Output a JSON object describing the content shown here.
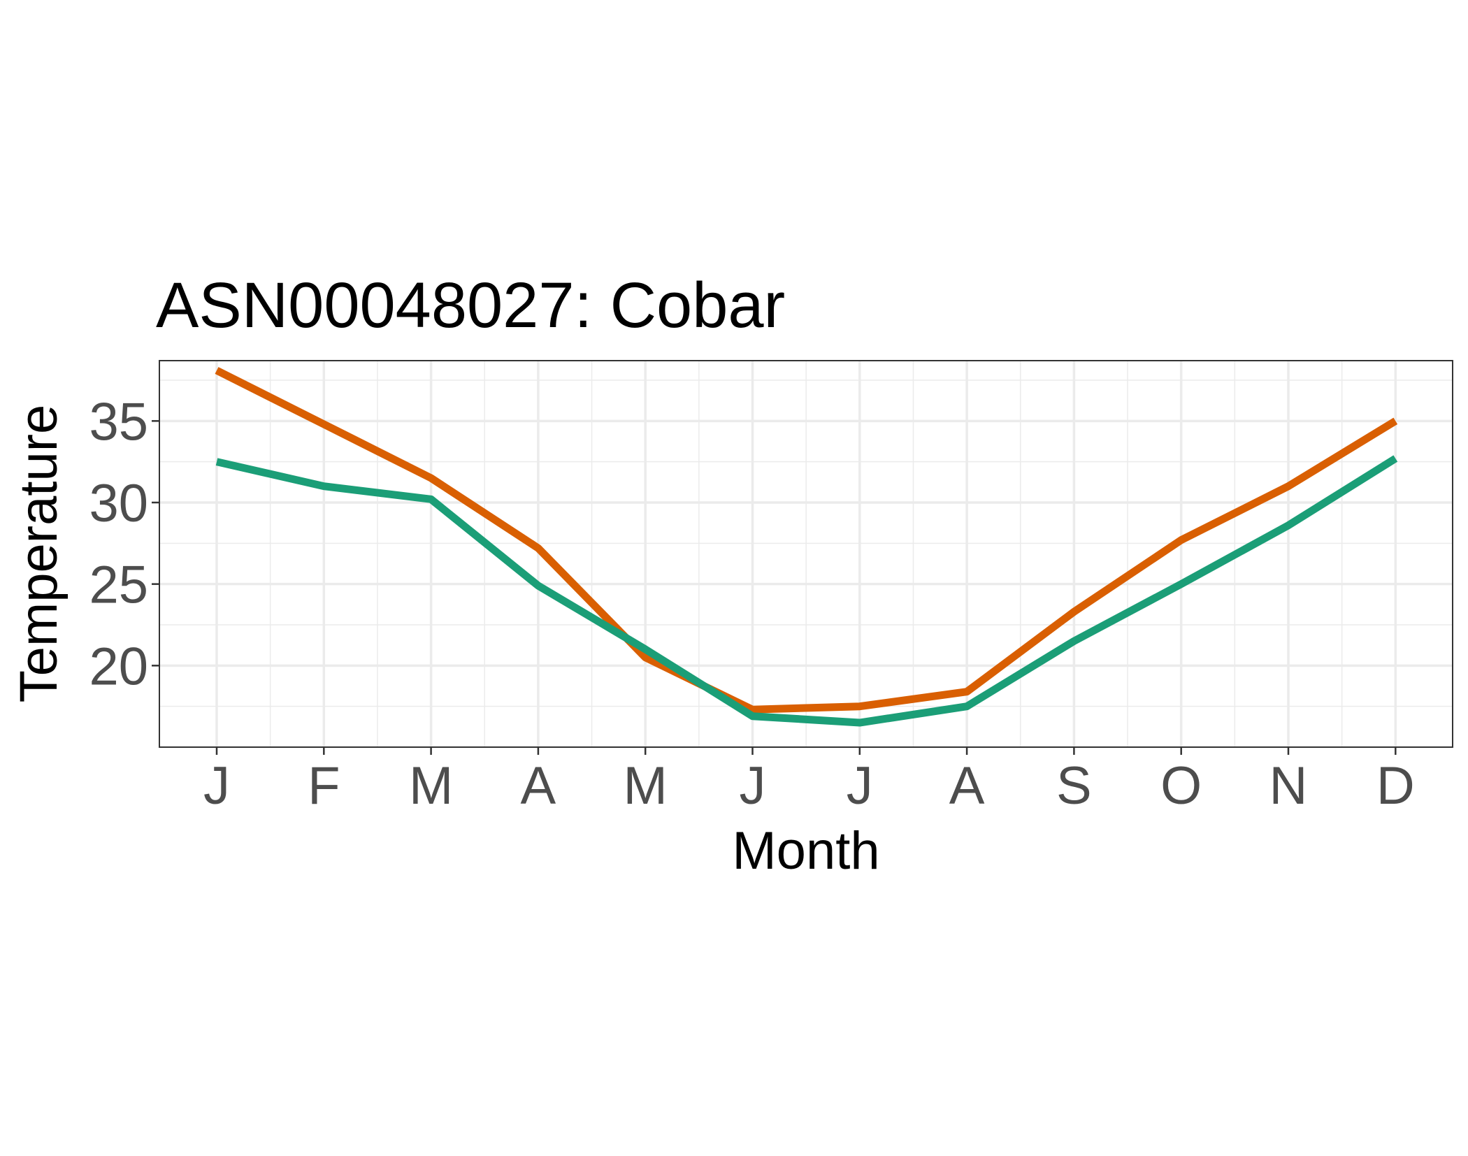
{
  "chart_data": {
    "type": "line",
    "title": "ASN00048027: Cobar",
    "xlabel": "Month",
    "ylabel": "Temperature",
    "categories": [
      "J",
      "F",
      "M",
      "A",
      "M",
      "J",
      "J",
      "A",
      "S",
      "O",
      "N",
      "D"
    ],
    "yticks": [
      20,
      25,
      30,
      35
    ],
    "ylim": [
      15.0,
      38.7
    ],
    "grid": true,
    "legend": "none",
    "series": [
      {
        "color": "#d95f02",
        "values": [
          38.1,
          34.8,
          31.5,
          27.2,
          20.5,
          17.3,
          17.5,
          18.4,
          23.3,
          27.7,
          31.0,
          35.0
        ]
      },
      {
        "color": "#1b9e77",
        "values": [
          32.5,
          31.0,
          30.2,
          24.9,
          21.0,
          16.9,
          16.5,
          17.5,
          21.5,
          25.0,
          28.6,
          32.7
        ]
      }
    ]
  }
}
